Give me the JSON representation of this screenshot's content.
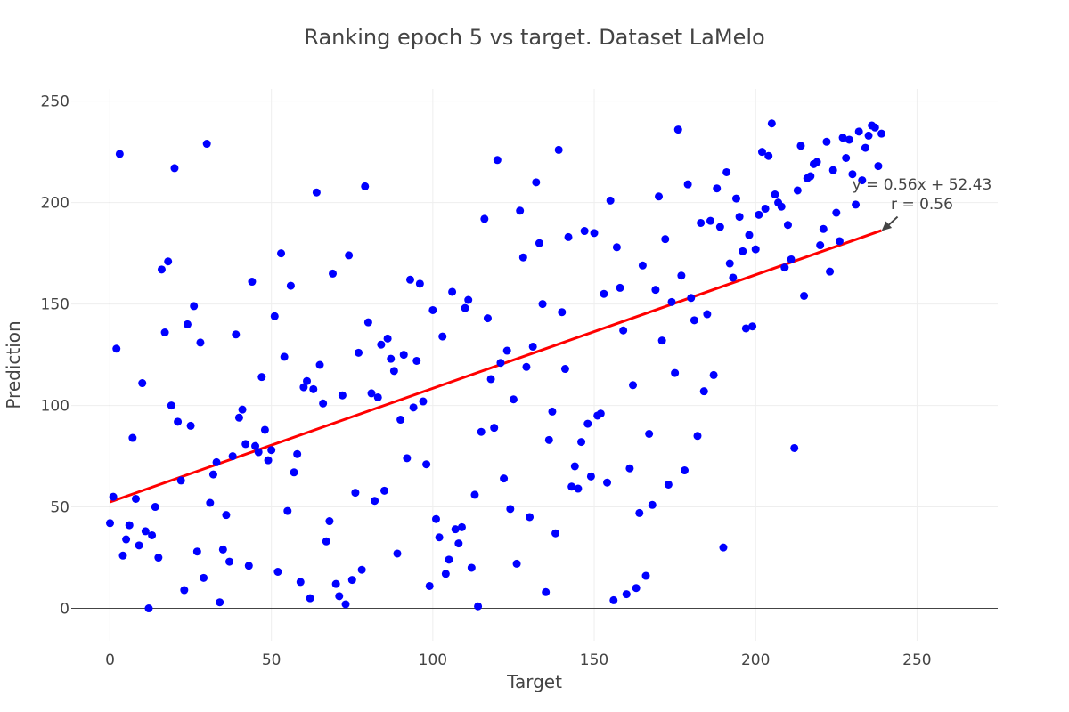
{
  "chart_data": {
    "type": "scatter",
    "title": "Ranking epoch 5 vs target. Dataset LaMelo",
    "xlabel": "Target",
    "ylabel": "Prediction",
    "xlim": [
      -12,
      275
    ],
    "ylim": [
      -16,
      256
    ],
    "xticks": [
      0,
      50,
      100,
      150,
      200,
      250
    ],
    "yticks": [
      0,
      50,
      100,
      150,
      200,
      250
    ],
    "grid": true,
    "point_color": "#0000ff",
    "fit_color": "#ff0000",
    "fit": {
      "slope": 0.56,
      "intercept": 52.43,
      "x_start": 0,
      "x_end": 239
    },
    "annotation": {
      "equation": "y = 0.56x + 52.43",
      "r_text": "r = 0.56",
      "arrow_at": [
        239,
        186
      ]
    },
    "points": [
      [
        0,
        42
      ],
      [
        1,
        55
      ],
      [
        2,
        128
      ],
      [
        3,
        224
      ],
      [
        4,
        26
      ],
      [
        5,
        34
      ],
      [
        6,
        41
      ],
      [
        7,
        84
      ],
      [
        8,
        54
      ],
      [
        9,
        31
      ],
      [
        10,
        111
      ],
      [
        11,
        38
      ],
      [
        12,
        0
      ],
      [
        13,
        36
      ],
      [
        14,
        50
      ],
      [
        15,
        25
      ],
      [
        16,
        167
      ],
      [
        17,
        136
      ],
      [
        18,
        171
      ],
      [
        19,
        100
      ],
      [
        20,
        217
      ],
      [
        21,
        92
      ],
      [
        22,
        63
      ],
      [
        23,
        9
      ],
      [
        24,
        140
      ],
      [
        25,
        90
      ],
      [
        26,
        149
      ],
      [
        27,
        28
      ],
      [
        28,
        131
      ],
      [
        29,
        15
      ],
      [
        30,
        229
      ],
      [
        31,
        52
      ],
      [
        32,
        66
      ],
      [
        33,
        72
      ],
      [
        34,
        3
      ],
      [
        35,
        29
      ],
      [
        36,
        46
      ],
      [
        37,
        23
      ],
      [
        38,
        75
      ],
      [
        39,
        135
      ],
      [
        40,
        94
      ],
      [
        41,
        98
      ],
      [
        42,
        81
      ],
      [
        43,
        21
      ],
      [
        44,
        161
      ],
      [
        45,
        80
      ],
      [
        46,
        77
      ],
      [
        47,
        114
      ],
      [
        48,
        88
      ],
      [
        49,
        73
      ],
      [
        50,
        78
      ],
      [
        51,
        144
      ],
      [
        52,
        18
      ],
      [
        53,
        175
      ],
      [
        54,
        124
      ],
      [
        55,
        48
      ],
      [
        56,
        159
      ],
      [
        57,
        67
      ],
      [
        58,
        76
      ],
      [
        59,
        13
      ],
      [
        60,
        109
      ],
      [
        61,
        112
      ],
      [
        62,
        5
      ],
      [
        63,
        108
      ],
      [
        64,
        205
      ],
      [
        65,
        120
      ],
      [
        66,
        101
      ],
      [
        67,
        33
      ],
      [
        68,
        43
      ],
      [
        69,
        165
      ],
      [
        70,
        12
      ],
      [
        71,
        6
      ],
      [
        72,
        105
      ],
      [
        73,
        2
      ],
      [
        74,
        174
      ],
      [
        75,
        14
      ],
      [
        76,
        57
      ],
      [
        77,
        126
      ],
      [
        78,
        19
      ],
      [
        79,
        208
      ],
      [
        80,
        141
      ],
      [
        81,
        106
      ],
      [
        82,
        53
      ],
      [
        83,
        104
      ],
      [
        84,
        130
      ],
      [
        85,
        58
      ],
      [
        86,
        133
      ],
      [
        87,
        123
      ],
      [
        88,
        117
      ],
      [
        89,
        27
      ],
      [
        90,
        93
      ],
      [
        91,
        125
      ],
      [
        92,
        74
      ],
      [
        93,
        162
      ],
      [
        94,
        99
      ],
      [
        95,
        122
      ],
      [
        96,
        160
      ],
      [
        97,
        102
      ],
      [
        98,
        71
      ],
      [
        99,
        11
      ],
      [
        100,
        147
      ],
      [
        101,
        44
      ],
      [
        102,
        35
      ],
      [
        103,
        134
      ],
      [
        104,
        17
      ],
      [
        105,
        24
      ],
      [
        106,
        156
      ],
      [
        107,
        39
      ],
      [
        108,
        32
      ],
      [
        109,
        40
      ],
      [
        110,
        148
      ],
      [
        111,
        152
      ],
      [
        112,
        20
      ],
      [
        113,
        56
      ],
      [
        114,
        1
      ],
      [
        115,
        87
      ],
      [
        116,
        192
      ],
      [
        117,
        143
      ],
      [
        118,
        113
      ],
      [
        119,
        89
      ],
      [
        120,
        221
      ],
      [
        121,
        121
      ],
      [
        122,
        64
      ],
      [
        123,
        127
      ],
      [
        124,
        49
      ],
      [
        125,
        103
      ],
      [
        126,
        22
      ],
      [
        127,
        196
      ],
      [
        128,
        173
      ],
      [
        129,
        119
      ],
      [
        130,
        45
      ],
      [
        131,
        129
      ],
      [
        132,
        210
      ],
      [
        133,
        180
      ],
      [
        134,
        150
      ],
      [
        135,
        8
      ],
      [
        136,
        83
      ],
      [
        137,
        97
      ],
      [
        138,
        37
      ],
      [
        139,
        226
      ],
      [
        140,
        146
      ],
      [
        141,
        118
      ],
      [
        142,
        183
      ],
      [
        143,
        60
      ],
      [
        144,
        70
      ],
      [
        145,
        59
      ],
      [
        146,
        82
      ],
      [
        147,
        186
      ],
      [
        148,
        91
      ],
      [
        149,
        65
      ],
      [
        150,
        185
      ],
      [
        151,
        95
      ],
      [
        152,
        96
      ],
      [
        153,
        155
      ],
      [
        154,
        62
      ],
      [
        155,
        201
      ],
      [
        156,
        4
      ],
      [
        157,
        178
      ],
      [
        158,
        158
      ],
      [
        159,
        137
      ],
      [
        160,
        7
      ],
      [
        161,
        69
      ],
      [
        162,
        110
      ],
      [
        163,
        10
      ],
      [
        164,
        47
      ],
      [
        165,
        169
      ],
      [
        166,
        16
      ],
      [
        167,
        86
      ],
      [
        168,
        51
      ],
      [
        169,
        157
      ],
      [
        170,
        203
      ],
      [
        171,
        132
      ],
      [
        172,
        182
      ],
      [
        173,
        61
      ],
      [
        174,
        151
      ],
      [
        175,
        116
      ],
      [
        176,
        236
      ],
      [
        177,
        164
      ],
      [
        178,
        68
      ],
      [
        179,
        209
      ],
      [
        180,
        153
      ],
      [
        181,
        142
      ],
      [
        182,
        85
      ],
      [
        183,
        190
      ],
      [
        184,
        107
      ],
      [
        185,
        145
      ],
      [
        186,
        191
      ],
      [
        187,
        115
      ],
      [
        188,
        207
      ],
      [
        189,
        188
      ],
      [
        190,
        30
      ],
      [
        191,
        215
      ],
      [
        192,
        170
      ],
      [
        193,
        163
      ],
      [
        194,
        202
      ],
      [
        195,
        193
      ],
      [
        196,
        176
      ],
      [
        197,
        138
      ],
      [
        198,
        184
      ],
      [
        199,
        139
      ],
      [
        200,
        177
      ],
      [
        201,
        194
      ],
      [
        202,
        225
      ],
      [
        203,
        197
      ],
      [
        204,
        223
      ],
      [
        205,
        239
      ],
      [
        206,
        204
      ],
      [
        207,
        200
      ],
      [
        208,
        198
      ],
      [
        209,
        168
      ],
      [
        210,
        189
      ],
      [
        211,
        172
      ],
      [
        212,
        79
      ],
      [
        213,
        206
      ],
      [
        214,
        228
      ],
      [
        215,
        154
      ],
      [
        216,
        212
      ],
      [
        217,
        213
      ],
      [
        218,
        219
      ],
      [
        219,
        220
      ],
      [
        220,
        179
      ],
      [
        221,
        187
      ],
      [
        222,
        230
      ],
      [
        223,
        166
      ],
      [
        224,
        216
      ],
      [
        225,
        195
      ],
      [
        226,
        181
      ],
      [
        227,
        232
      ],
      [
        228,
        222
      ],
      [
        229,
        231
      ],
      [
        230,
        214
      ],
      [
        231,
        199
      ],
      [
        232,
        235
      ],
      [
        233,
        211
      ],
      [
        234,
        227
      ],
      [
        235,
        233
      ],
      [
        236,
        238
      ],
      [
        237,
        237
      ],
      [
        238,
        218
      ],
      [
        239,
        234
      ]
    ]
  }
}
